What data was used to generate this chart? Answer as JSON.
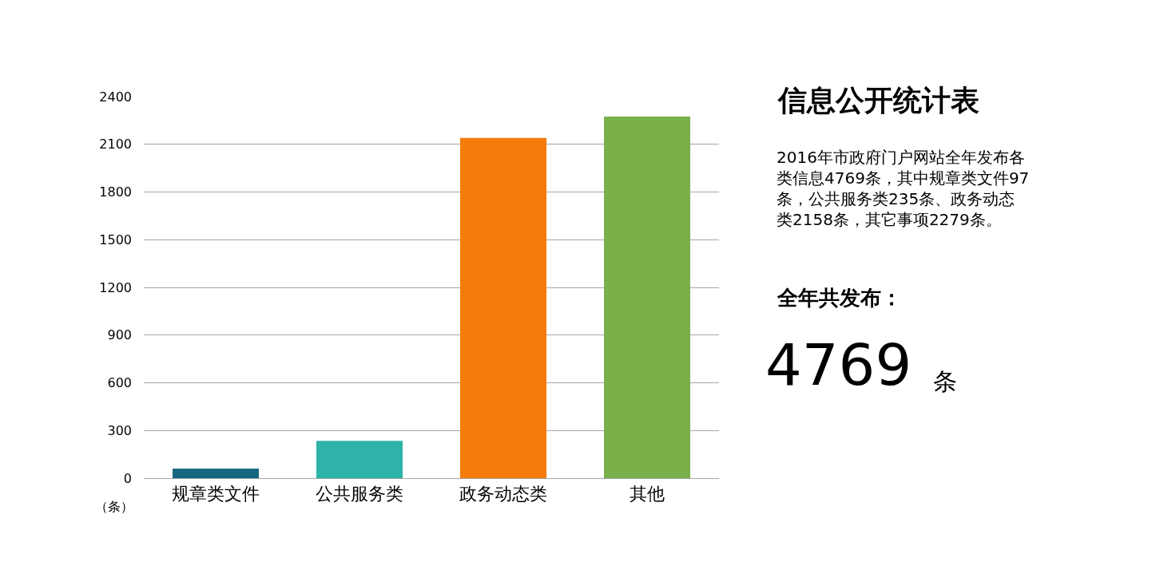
{
  "chart_data": {
    "type": "bar",
    "title": "信息公开统计表",
    "ylabel": "（条）",
    "categories": [
      "规章类文件",
      "公共服务类",
      "政务动态类",
      "其他"
    ],
    "values": [
      60,
      235,
      2140,
      2275
    ],
    "colors": [
      "#16677f",
      "#2db3a7",
      "#f57b0b",
      "#79b04a"
    ],
    "ylim": [
      0,
      2400
    ],
    "yticks": [
      0,
      300,
      600,
      900,
      1200,
      1500,
      1800,
      2100,
      2400
    ],
    "grid": "y",
    "annotations": [
      "2016年市政府门户网站全年发布各类信息4769条，其中规章类文件97条，公共服务类235条、政务动态类2158条，其它事项2279条。",
      "全年共发布：",
      "4769",
      "条"
    ]
  }
}
